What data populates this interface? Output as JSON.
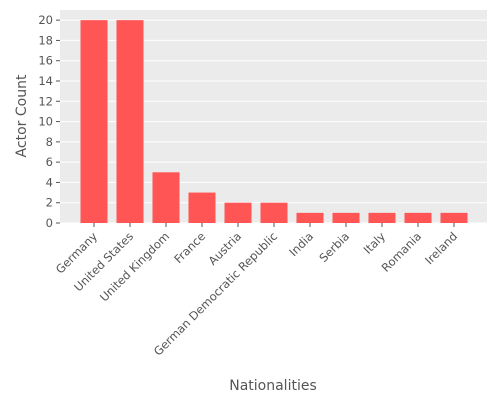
{
  "chart_data": {
    "type": "bar",
    "categories": [
      "Germany",
      "United States",
      "United Kingdom",
      "France",
      "Austria",
      "German Democratic Republic",
      "India",
      "Serbia",
      "Italy",
      "Romania",
      "Ireland"
    ],
    "values": [
      20,
      20,
      5,
      3,
      2,
      2,
      1,
      1,
      1,
      1,
      1
    ],
    "xlabel": "Nationalities",
    "ylabel": "Actor Count",
    "ylim": [
      0,
      21
    ],
    "yticks": [
      0,
      2,
      4,
      6,
      8,
      10,
      12,
      14,
      16,
      18,
      20
    ],
    "grid": true,
    "colors": {
      "bar": "#ff5555",
      "panel": "#ebebeb",
      "grid": "#ffffff",
      "text": "#555555"
    }
  }
}
